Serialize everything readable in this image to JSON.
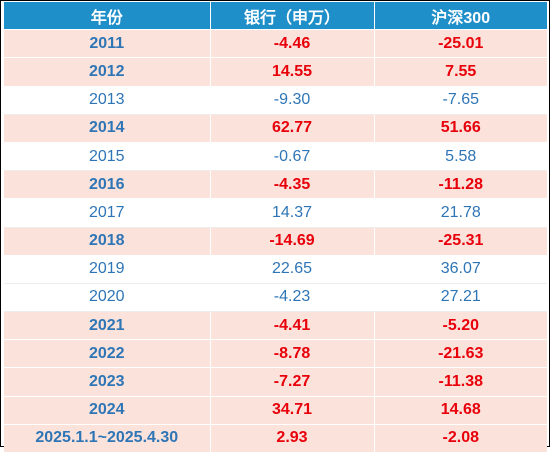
{
  "chart_data": {
    "type": "table",
    "columns": [
      "年份",
      "银行（申万）",
      "沪深300"
    ],
    "rows": [
      {
        "year": "2011",
        "bank": "-4.46",
        "hs300": "-25.01",
        "highlight": true
      },
      {
        "year": "2012",
        "bank": "14.55",
        "hs300": "7.55",
        "highlight": true
      },
      {
        "year": "2013",
        "bank": "-9.30",
        "hs300": "-7.65",
        "highlight": false
      },
      {
        "year": "2014",
        "bank": "62.77",
        "hs300": "51.66",
        "highlight": true
      },
      {
        "year": "2015",
        "bank": "-0.67",
        "hs300": "5.58",
        "highlight": false
      },
      {
        "year": "2016",
        "bank": "-4.35",
        "hs300": "-11.28",
        "highlight": true
      },
      {
        "year": "2017",
        "bank": "14.37",
        "hs300": "21.78",
        "highlight": false
      },
      {
        "year": "2018",
        "bank": "-14.69",
        "hs300": "-25.31",
        "highlight": true
      },
      {
        "year": "2019",
        "bank": "22.65",
        "hs300": "36.07",
        "highlight": false
      },
      {
        "year": "2020",
        "bank": "-4.23",
        "hs300": "27.21",
        "highlight": false
      },
      {
        "year": "2021",
        "bank": "-4.41",
        "hs300": "-5.20",
        "highlight": true
      },
      {
        "year": "2022",
        "bank": "-8.78",
        "hs300": "-21.63",
        "highlight": true
      },
      {
        "year": "2023",
        "bank": "-7.27",
        "hs300": "-11.38",
        "highlight": true
      },
      {
        "year": "2024",
        "bank": "34.71",
        "hs300": "14.68",
        "highlight": true
      },
      {
        "year": "2025.1.1~2025.4.30",
        "bank": "2.93",
        "hs300": "-2.08",
        "highlight": true
      }
    ]
  },
  "colors": {
    "header_bg": "#1f8fc9",
    "highlight_row_bg": "#fbe3db",
    "highlight_text": "#e8000b",
    "normal_text": "#2e75b6"
  }
}
